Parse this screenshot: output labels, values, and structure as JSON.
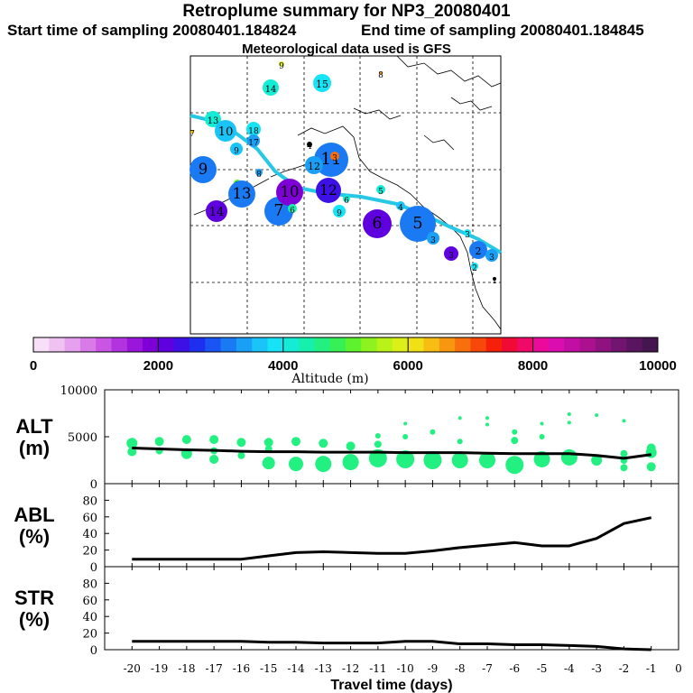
{
  "header": {
    "title": "Retroplume summary for NP3_20080401",
    "start_time": "Start time of sampling 20080401.184824",
    "end_time": "End time of sampling 20080401.184845",
    "met_data": "Meteorological data used is GFS"
  },
  "chart_data": [
    {
      "type": "scatter",
      "panel": "map",
      "description_labels": [],
      "plume_path_color": "#27c8e6",
      "clusters": [
        {
          "label": "1",
          "day": 1,
          "alt": 3000
        },
        {
          "label": "2",
          "day": 2,
          "alt": 2600
        },
        {
          "label": "3",
          "day": 3,
          "alt": 2600
        },
        {
          "label": "5",
          "day": 5,
          "alt": 2400
        },
        {
          "label": "6",
          "day": 6,
          "alt": 2200
        },
        {
          "label": "7",
          "day": 7,
          "alt": 2700
        },
        {
          "label": "9",
          "day": 9,
          "alt": 2300
        },
        {
          "label": "10",
          "day": 10,
          "alt": 2500
        },
        {
          "label": "14",
          "day": 14,
          "alt": 2200
        },
        {
          "label": "15",
          "day": 15,
          "alt": 3900
        }
      ]
    },
    {
      "type": "scale",
      "panel": "colorbar",
      "title": "Altitude (m)",
      "tick_labels": [
        "0",
        "2000",
        "4000",
        "6000",
        "8000",
        "10000"
      ],
      "range": [
        0,
        10000
      ],
      "colors": [
        "#f7e0f7",
        "#efc2f2",
        "#e6a0ee",
        "#d97ae9",
        "#c855e4",
        "#b234df",
        "#9a16da",
        "#7f00d6",
        "#5f00de",
        "#3d10e6",
        "#1f2ff0",
        "#1a55f3",
        "#1a7af4",
        "#1a9ff6",
        "#1ac4f8",
        "#17e3f6",
        "#15ecd6",
        "#17efad",
        "#22f081",
        "#37f055",
        "#5ef12d",
        "#8df21d",
        "#b9f219",
        "#dcef18",
        "#f2e016",
        "#f7bd12",
        "#f8970f",
        "#f8700d",
        "#f7470b",
        "#f6200a",
        "#f20a36",
        "#ef0a6a",
        "#eb0a9a",
        "#db0cb0",
        "#c30ea5",
        "#ab108f",
        "#8f1280",
        "#711571",
        "#5a1560",
        "#45154f"
      ]
    },
    {
      "type": "line",
      "panel": "ALT",
      "ylabel": "ALT (m)",
      "y_ticks": [
        "10000",
        "5000",
        "0"
      ],
      "ylim": [
        0,
        10000
      ],
      "x": [
        -20,
        -19,
        -18,
        -17,
        -16,
        -15,
        -14,
        -13,
        -12,
        -11,
        -10,
        -9,
        -8,
        -7,
        -6,
        -5,
        -4,
        -3,
        -2,
        -1
      ],
      "mean_values": [
        3800,
        3700,
        3600,
        3550,
        3450,
        3400,
        3400,
        3350,
        3350,
        3350,
        3300,
        3300,
        3300,
        3250,
        3200,
        3200,
        3200,
        3000,
        2700,
        3100
      ],
      "scatter_points": [
        {
          "x": -20,
          "y": 4300,
          "s": 6
        },
        {
          "x": -20,
          "y": 3400,
          "s": 5
        },
        {
          "x": -19,
          "y": 4500,
          "s": 5
        },
        {
          "x": -19,
          "y": 3500,
          "s": 4
        },
        {
          "x": -18,
          "y": 4700,
          "s": 5
        },
        {
          "x": -18,
          "y": 3200,
          "s": 6
        },
        {
          "x": -17,
          "y": 4700,
          "s": 5
        },
        {
          "x": -17,
          "y": 3500,
          "s": 4
        },
        {
          "x": -17,
          "y": 2600,
          "s": 5
        },
        {
          "x": -16,
          "y": 4400,
          "s": 5
        },
        {
          "x": -16,
          "y": 3000,
          "s": 4
        },
        {
          "x": -15,
          "y": 4400,
          "s": 5
        },
        {
          "x": -15,
          "y": 3700,
          "s": 4
        },
        {
          "x": -15,
          "y": 2200,
          "s": 7
        },
        {
          "x": -14,
          "y": 4500,
          "s": 5
        },
        {
          "x": -14,
          "y": 2100,
          "s": 8
        },
        {
          "x": -13,
          "y": 4300,
          "s": 5
        },
        {
          "x": -13,
          "y": 2100,
          "s": 9
        },
        {
          "x": -12,
          "y": 4000,
          "s": 5
        },
        {
          "x": -12,
          "y": 2300,
          "s": 9
        },
        {
          "x": -11,
          "y": 5100,
          "s": 3
        },
        {
          "x": -11,
          "y": 4200,
          "s": 4
        },
        {
          "x": -11,
          "y": 2700,
          "s": 10
        },
        {
          "x": -10,
          "y": 6400,
          "s": 2
        },
        {
          "x": -10,
          "y": 5000,
          "s": 3
        },
        {
          "x": -10,
          "y": 2600,
          "s": 10
        },
        {
          "x": -9,
          "y": 5500,
          "s": 3
        },
        {
          "x": -9,
          "y": 2500,
          "s": 10
        },
        {
          "x": -8,
          "y": 7000,
          "s": 2
        },
        {
          "x": -8,
          "y": 4500,
          "s": 3
        },
        {
          "x": -8,
          "y": 2500,
          "s": 9
        },
        {
          "x": -7,
          "y": 7000,
          "s": 2
        },
        {
          "x": -7,
          "y": 6300,
          "s": 2
        },
        {
          "x": -7,
          "y": 2500,
          "s": 9
        },
        {
          "x": -6,
          "y": 5500,
          "s": 3
        },
        {
          "x": -6,
          "y": 4600,
          "s": 4
        },
        {
          "x": -6,
          "y": 2000,
          "s": 10
        },
        {
          "x": -5,
          "y": 6400,
          "s": 2
        },
        {
          "x": -5,
          "y": 5000,
          "s": 3
        },
        {
          "x": -5,
          "y": 2600,
          "s": 9
        },
        {
          "x": -4,
          "y": 7400,
          "s": 2
        },
        {
          "x": -4,
          "y": 6500,
          "s": 2
        },
        {
          "x": -4,
          "y": 2800,
          "s": 9
        },
        {
          "x": -3,
          "y": 7300,
          "s": 2
        },
        {
          "x": -3,
          "y": 2500,
          "s": 6
        },
        {
          "x": -2,
          "y": 6700,
          "s": 2
        },
        {
          "x": -2,
          "y": 3200,
          "s": 4
        },
        {
          "x": -2,
          "y": 2500,
          "s": 4
        },
        {
          "x": -2,
          "y": 1700,
          "s": 4
        },
        {
          "x": -1,
          "y": 3800,
          "s": 5
        },
        {
          "x": -1,
          "y": 3300,
          "s": 6
        },
        {
          "x": -1,
          "y": 1800,
          "s": 5
        }
      ]
    },
    {
      "type": "line",
      "panel": "ABL",
      "ylabel": "ABL (%)",
      "y_ticks": [
        "80",
        "60",
        "40",
        "20",
        "0"
      ],
      "ylim": [
        0,
        100
      ],
      "x": [
        -20,
        -19,
        -18,
        -17,
        -16,
        -15,
        -14,
        -13,
        -12,
        -11,
        -10,
        -9,
        -8,
        -7,
        -6,
        -5,
        -4,
        -3,
        -2,
        -1
      ],
      "values": [
        9,
        9,
        9,
        9,
        9,
        13,
        17,
        18,
        17,
        16,
        16,
        19,
        23,
        26,
        29,
        25,
        25,
        34,
        52,
        59
      ]
    },
    {
      "type": "line",
      "panel": "STR",
      "ylabel": "STR (%)",
      "y_ticks": [
        "80",
        "60",
        "40",
        "20",
        "0"
      ],
      "ylim": [
        0,
        100
      ],
      "xlabel": "Travel time (days)",
      "x_ticks": [
        "-20",
        "-19",
        "-18",
        "-17",
        "-16",
        "-15",
        "-14",
        "-13",
        "-12",
        "-11",
        "-10",
        "-9",
        "-8",
        "-7",
        "-6",
        "-5",
        "-4",
        "-3",
        "-2",
        "-1",
        "0"
      ],
      "x": [
        -20,
        -19,
        -18,
        -17,
        -16,
        -15,
        -14,
        -13,
        -12,
        -11,
        -10,
        -9,
        -8,
        -7,
        -6,
        -5,
        -4,
        -3,
        -2,
        -1
      ],
      "values": [
        10,
        10,
        10,
        10,
        10,
        9,
        9,
        8,
        8,
        8,
        10,
        10,
        7,
        7,
        6,
        6,
        5,
        4,
        1,
        0
      ]
    }
  ],
  "labels": {
    "alt_ylabel_top": "ALT",
    "alt_ylabel_unit": "(m)",
    "abl_ylabel_top": "ABL",
    "abl_ylabel_unit": "(%)",
    "str_ylabel_top": "STR",
    "str_ylabel_unit": "(%)"
  }
}
